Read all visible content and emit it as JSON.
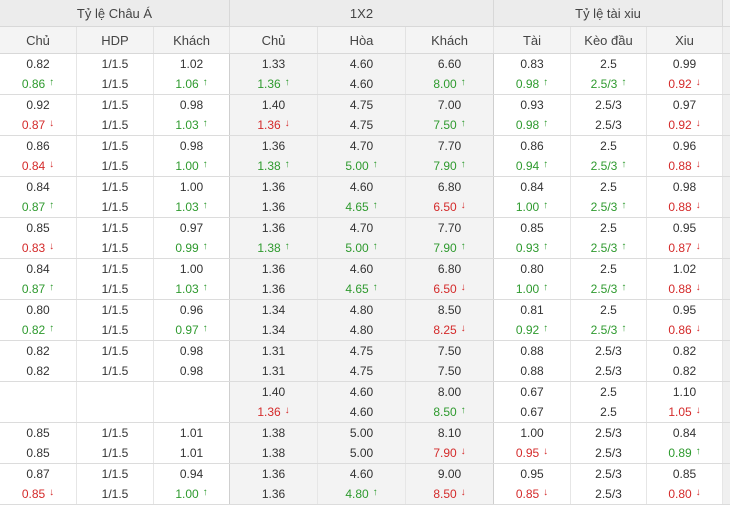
{
  "header": {
    "groups": [
      "Tỷ lệ Châu Á",
      "1X2",
      "Tỷ lệ tài xiu"
    ],
    "columns": [
      "Chủ",
      "HDP",
      "Khách",
      "Chủ",
      "Hòa",
      "Khách",
      "Tài",
      "Kèo đầu",
      "Xiu"
    ]
  },
  "colors": {
    "up": "#2e9a2e",
    "down": "#d42a2a",
    "neutral": "#333333",
    "header_bg": "#ececec"
  },
  "rows": [
    [
      [
        "0.82",
        "0.86"
      ],
      [
        "1/1.5",
        "1/1.5"
      ],
      [
        "1.02",
        "1.06"
      ],
      [
        "1.33",
        "1.36"
      ],
      [
        "4.60",
        "4.60"
      ],
      [
        "6.60",
        "8.00"
      ],
      [
        "0.83",
        "0.98"
      ],
      [
        "2.5",
        "2.5/3"
      ],
      [
        "0.99",
        "0.92"
      ]
    ],
    [
      [
        "0.92",
        "0.87"
      ],
      [
        "1/1.5",
        "1/1.5"
      ],
      [
        "0.98",
        "1.03"
      ],
      [
        "1.40",
        "1.36"
      ],
      [
        "4.75",
        "4.75"
      ],
      [
        "7.00",
        "7.50"
      ],
      [
        "0.93",
        "0.98"
      ],
      [
        "2.5/3",
        "2.5/3"
      ],
      [
        "0.97",
        "0.92"
      ]
    ],
    [
      [
        "0.86",
        "0.84"
      ],
      [
        "1/1.5",
        "1/1.5"
      ],
      [
        "0.98",
        "1.00"
      ],
      [
        "1.36",
        "1.38"
      ],
      [
        "4.70",
        "5.00"
      ],
      [
        "7.70",
        "7.90"
      ],
      [
        "0.86",
        "0.94"
      ],
      [
        "2.5",
        "2.5/3"
      ],
      [
        "0.96",
        "0.88"
      ]
    ],
    [
      [
        "0.84",
        "0.87"
      ],
      [
        "1/1.5",
        "1/1.5"
      ],
      [
        "1.00",
        "1.03"
      ],
      [
        "1.36",
        "1.36"
      ],
      [
        "4.60",
        "4.65"
      ],
      [
        "6.80",
        "6.50"
      ],
      [
        "0.84",
        "1.00"
      ],
      [
        "2.5",
        "2.5/3"
      ],
      [
        "0.98",
        "0.88"
      ]
    ],
    [
      [
        "0.85",
        "0.83"
      ],
      [
        "1/1.5",
        "1/1.5"
      ],
      [
        "0.97",
        "0.99"
      ],
      [
        "1.36",
        "1.38"
      ],
      [
        "4.70",
        "5.00"
      ],
      [
        "7.70",
        "7.90"
      ],
      [
        "0.85",
        "0.93"
      ],
      [
        "2.5",
        "2.5/3"
      ],
      [
        "0.95",
        "0.87"
      ]
    ],
    [
      [
        "0.84",
        "0.87"
      ],
      [
        "1/1.5",
        "1/1.5"
      ],
      [
        "1.00",
        "1.03"
      ],
      [
        "1.36",
        "1.36"
      ],
      [
        "4.60",
        "4.65"
      ],
      [
        "6.80",
        "6.50"
      ],
      [
        "0.80",
        "1.00"
      ],
      [
        "2.5",
        "2.5/3"
      ],
      [
        "1.02",
        "0.88"
      ]
    ],
    [
      [
        "0.80",
        "0.82"
      ],
      [
        "1/1.5",
        "1/1.5"
      ],
      [
        "0.96",
        "0.97"
      ],
      [
        "1.34",
        "1.34"
      ],
      [
        "4.80",
        "4.80"
      ],
      [
        "8.50",
        "8.25"
      ],
      [
        "0.81",
        "0.92"
      ],
      [
        "2.5",
        "2.5/3"
      ],
      [
        "0.95",
        "0.86"
      ]
    ],
    [
      [
        "0.82",
        "0.82"
      ],
      [
        "1/1.5",
        "1/1.5"
      ],
      [
        "0.98",
        "0.98"
      ],
      [
        "1.31",
        "1.31"
      ],
      [
        "4.75",
        "4.75"
      ],
      [
        "7.50",
        "7.50"
      ],
      [
        "0.88",
        "0.88"
      ],
      [
        "2.5/3",
        "2.5/3"
      ],
      [
        "0.82",
        "0.82"
      ]
    ],
    [
      [
        "",
        ""
      ],
      [
        "",
        ""
      ],
      [
        "",
        ""
      ],
      [
        "1.40",
        "1.36"
      ],
      [
        "4.60",
        "4.60"
      ],
      [
        "8.00",
        "8.50"
      ],
      [
        "0.67",
        "0.67"
      ],
      [
        "2.5",
        "2.5"
      ],
      [
        "1.10",
        "1.05"
      ]
    ],
    [
      [
        "0.85",
        "0.85"
      ],
      [
        "1/1.5",
        "1/1.5"
      ],
      [
        "1.01",
        "1.01"
      ],
      [
        "1.38",
        "1.38"
      ],
      [
        "5.00",
        "5.00"
      ],
      [
        "8.10",
        "7.90"
      ],
      [
        "1.00",
        "0.95"
      ],
      [
        "2.5/3",
        "2.5/3"
      ],
      [
        "0.84",
        "0.89"
      ]
    ],
    [
      [
        "0.87",
        "0.85"
      ],
      [
        "1/1.5",
        "1/1.5"
      ],
      [
        "0.94",
        "1.00"
      ],
      [
        "1.36",
        "1.36"
      ],
      [
        "4.60",
        "4.80"
      ],
      [
        "9.00",
        "8.50"
      ],
      [
        "0.95",
        "0.85"
      ],
      [
        "2.5/3",
        "2.5/3"
      ],
      [
        "0.85",
        "0.80"
      ]
    ]
  ],
  "trends": [
    [
      [
        "",
        "up"
      ],
      [
        "",
        ""
      ],
      [
        "",
        "up"
      ],
      [
        "",
        "up"
      ],
      [
        "",
        ""
      ],
      [
        "",
        "up"
      ],
      [
        "",
        "up"
      ],
      [
        "",
        "up"
      ],
      [
        "",
        "down"
      ]
    ],
    [
      [
        "",
        "down"
      ],
      [
        "",
        ""
      ],
      [
        "",
        "up"
      ],
      [
        "",
        "down"
      ],
      [
        "",
        ""
      ],
      [
        "",
        "up"
      ],
      [
        "",
        "up"
      ],
      [
        "",
        ""
      ],
      [
        "",
        "down"
      ]
    ],
    [
      [
        "",
        "down"
      ],
      [
        "",
        ""
      ],
      [
        "",
        "up"
      ],
      [
        "",
        "up"
      ],
      [
        "",
        "up"
      ],
      [
        "",
        "up"
      ],
      [
        "",
        "up"
      ],
      [
        "",
        "up"
      ],
      [
        "",
        "down"
      ]
    ],
    [
      [
        "",
        "up"
      ],
      [
        "",
        ""
      ],
      [
        "",
        "up"
      ],
      [
        "",
        ""
      ],
      [
        "",
        "up"
      ],
      [
        "",
        "down"
      ],
      [
        "",
        "up"
      ],
      [
        "",
        "up"
      ],
      [
        "",
        "down"
      ]
    ],
    [
      [
        "",
        "down"
      ],
      [
        "",
        ""
      ],
      [
        "",
        "up"
      ],
      [
        "",
        "up"
      ],
      [
        "",
        "up"
      ],
      [
        "",
        "up"
      ],
      [
        "",
        "up"
      ],
      [
        "",
        "up"
      ],
      [
        "",
        "down"
      ]
    ],
    [
      [
        "",
        "up"
      ],
      [
        "",
        ""
      ],
      [
        "",
        "up"
      ],
      [
        "",
        ""
      ],
      [
        "",
        "up"
      ],
      [
        "",
        "down"
      ],
      [
        "",
        "up"
      ],
      [
        "",
        "up"
      ],
      [
        "",
        "down"
      ]
    ],
    [
      [
        "",
        "up"
      ],
      [
        "",
        ""
      ],
      [
        "",
        "up"
      ],
      [
        "",
        ""
      ],
      [
        "",
        ""
      ],
      [
        "",
        "down"
      ],
      [
        "",
        "up"
      ],
      [
        "",
        "up"
      ],
      [
        "",
        "down"
      ]
    ],
    [
      [
        "",
        ""
      ],
      [
        "",
        ""
      ],
      [
        "",
        ""
      ],
      [
        "",
        ""
      ],
      [
        "",
        ""
      ],
      [
        "",
        ""
      ],
      [
        "",
        ""
      ],
      [
        "",
        ""
      ],
      [
        "",
        ""
      ]
    ],
    [
      [
        "",
        ""
      ],
      [
        "",
        ""
      ],
      [
        "",
        ""
      ],
      [
        "",
        "down"
      ],
      [
        "",
        ""
      ],
      [
        "",
        "up"
      ],
      [
        "",
        ""
      ],
      [
        "",
        ""
      ],
      [
        "",
        "down"
      ]
    ],
    [
      [
        "",
        ""
      ],
      [
        "",
        ""
      ],
      [
        "",
        ""
      ],
      [
        "",
        ""
      ],
      [
        "",
        ""
      ],
      [
        "",
        "down"
      ],
      [
        "",
        "down"
      ],
      [
        "",
        ""
      ],
      [
        "",
        "up"
      ]
    ],
    [
      [
        "",
        "down"
      ],
      [
        "",
        ""
      ],
      [
        "",
        "up"
      ],
      [
        "",
        ""
      ],
      [
        "",
        "up"
      ],
      [
        "",
        "down"
      ],
      [
        "",
        "down"
      ],
      [
        "",
        ""
      ],
      [
        "",
        "down"
      ]
    ]
  ],
  "shaded_columns": [
    3,
    4,
    5
  ]
}
